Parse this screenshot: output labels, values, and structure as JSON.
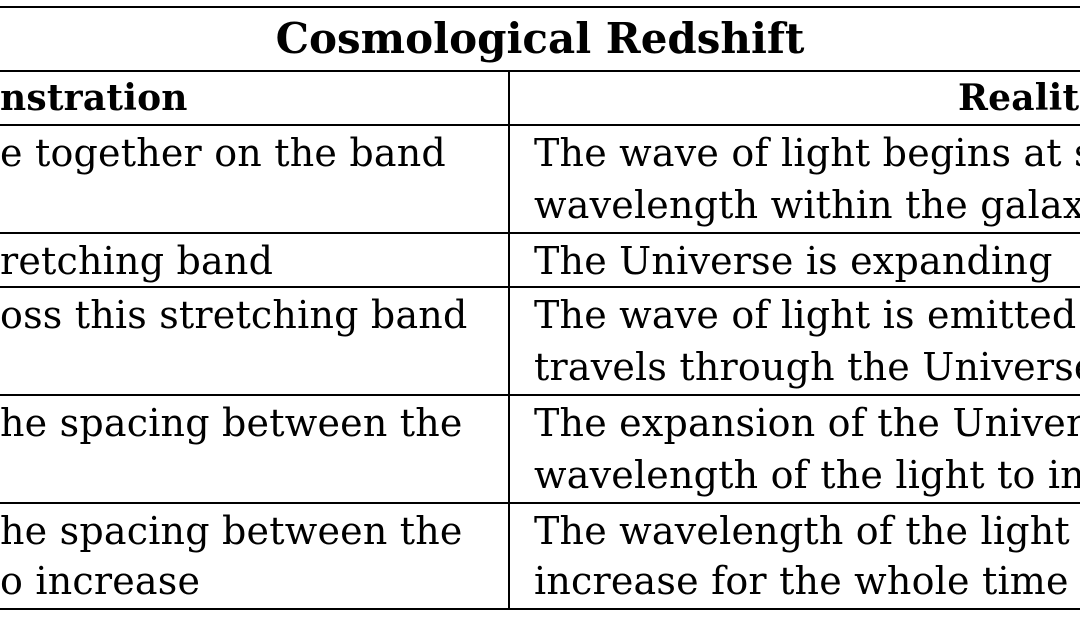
{
  "table": {
    "title": "Cosmological Redshift",
    "left_header": "nstration",
    "right_header": "Realit",
    "rows": [
      {
        "left": [
          "e together on the band",
          ""
        ],
        "right": [
          "The wave of light begins at so",
          "wavelength within the galaxy"
        ]
      },
      {
        "left": [
          "retching band"
        ],
        "right": [
          "The Universe is expanding"
        ]
      },
      {
        "left": [
          "oss this stretching band",
          ""
        ],
        "right": [
          "The wave of light is emitted f",
          "travels through the Universe"
        ]
      },
      {
        "left": [
          "he spacing between the",
          ""
        ],
        "right": [
          "The expansion of the Univers",
          "wavelength of the light to inc"
        ]
      },
      {
        "left": [
          "he spacing between the",
          "o increase"
        ],
        "right": [
          "The wavelength of the light w",
          "increase for the whole time i"
        ]
      }
    ]
  }
}
